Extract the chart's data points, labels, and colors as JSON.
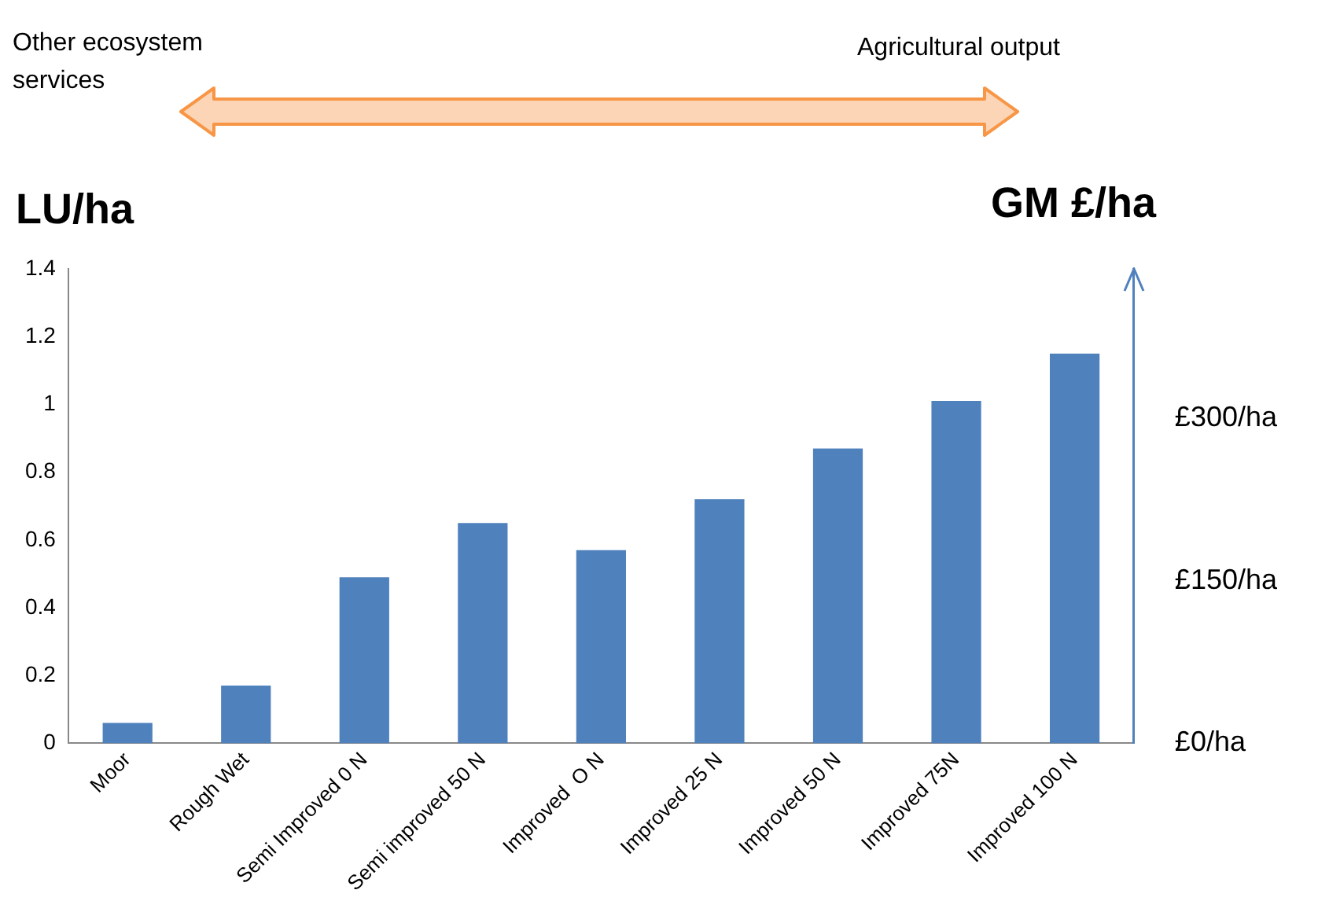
{
  "chart_data": {
    "type": "bar",
    "ylabel": "LU/ha",
    "y2label": "GM £/ha",
    "categories": [
      "Moor",
      "Rough Wet",
      "Semi Improved 0 N",
      "Semi improved 50 N",
      "Improved  O N",
      "Improved 25 N",
      "Improved 50 N",
      "Improved 75N",
      "Improved 100 N"
    ],
    "values": [
      0.06,
      0.17,
      0.49,
      0.65,
      0.57,
      0.72,
      0.87,
      1.01,
      1.15
    ],
    "color": "#4f81bd",
    "ylim": [
      0,
      1.4
    ],
    "yticks": [
      0,
      0.2,
      0.4,
      0.6,
      0.8,
      1,
      1.2,
      1.4
    ],
    "y2lim": [
      0,
      438
    ],
    "y2ticks": [
      {
        "value": 0,
        "label": "£0/ha"
      },
      {
        "value": 150,
        "label": "£150/ha"
      },
      {
        "value": 300,
        "label": "£300/ha"
      }
    ],
    "annotations": [
      "Other ecosystem services",
      "Agricultural output"
    ],
    "grid": false,
    "legend": false
  }
}
